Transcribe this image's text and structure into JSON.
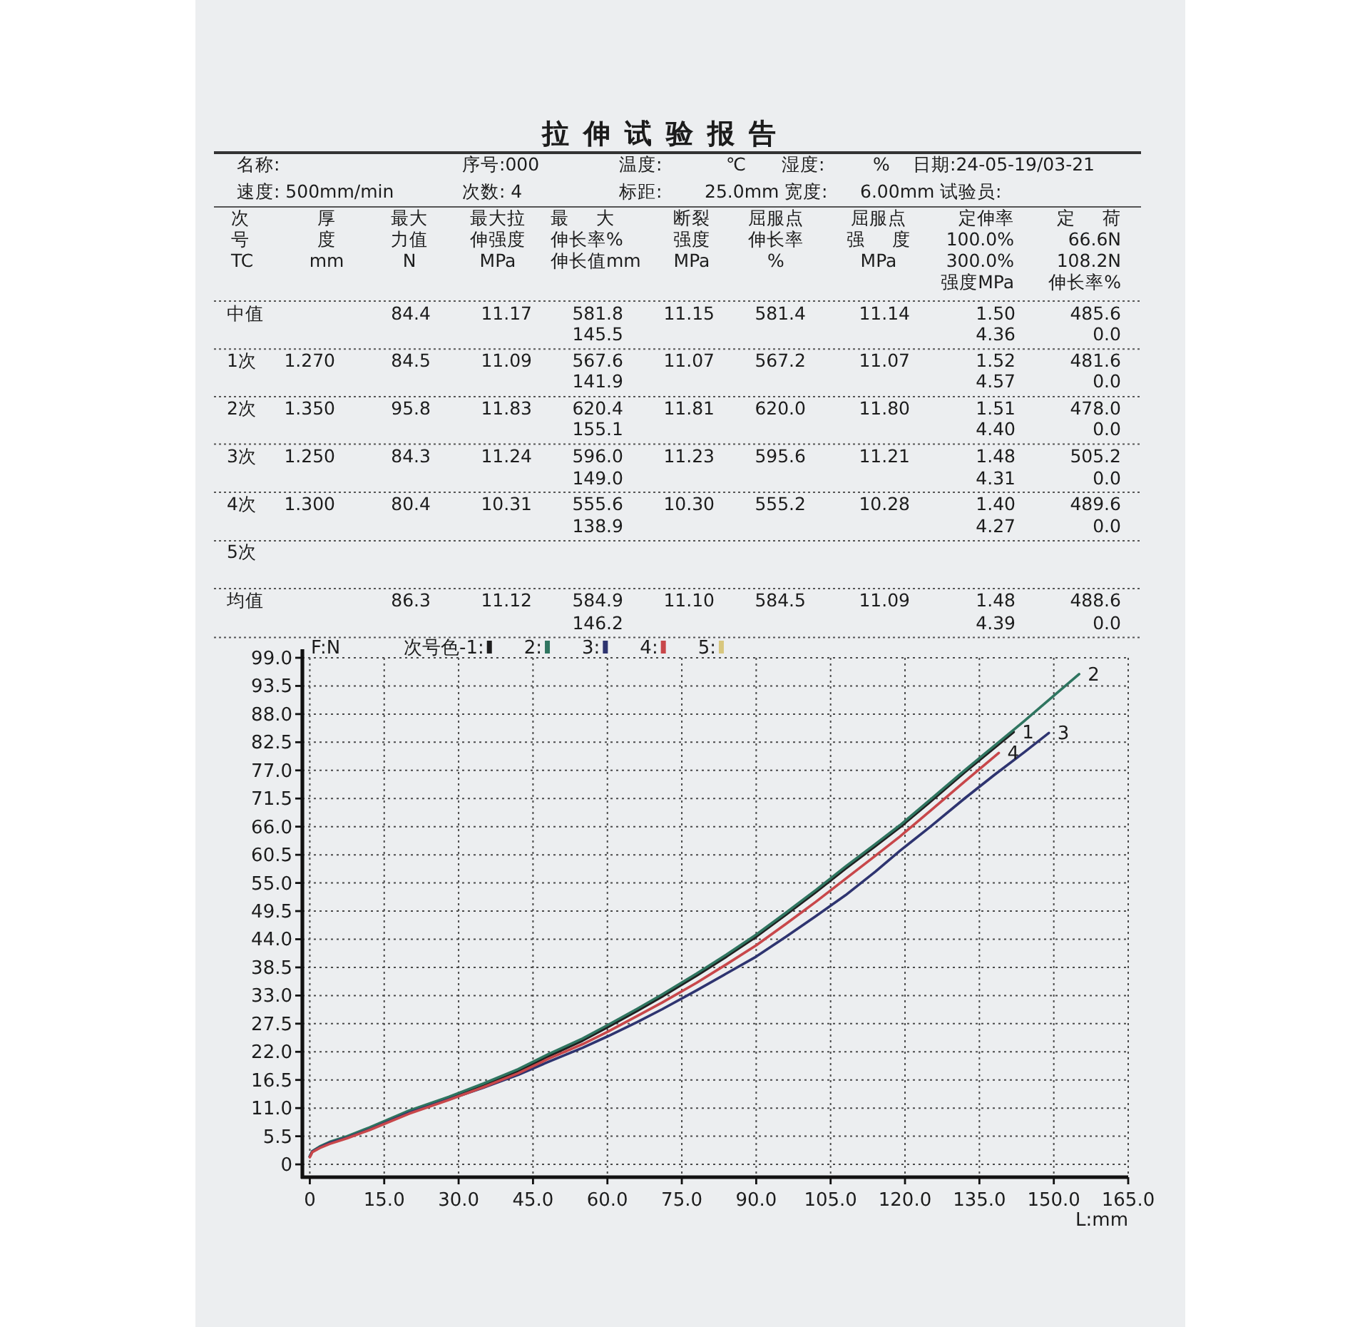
{
  "chart_data": [
    {
      "type": "other",
      "title": "拉伸试验报告",
      "annotations": [
        "名称:",
        "序号:000",
        "温度:",
        "℃",
        "湿度:",
        "%",
        "日期:24-05-19/03-21",
        "速度: 500mm/min",
        "次数: 4",
        "标距:",
        "25.0mm",
        "宽度:",
        "6.00mm",
        "试验员:",
        "次",
        "厚",
        "最大",
        "最大拉",
        "最 大",
        "断裂",
        "屈服点",
        "屈服点",
        "定伸率",
        "定 荷",
        "号",
        "度",
        "力值",
        "伸强度",
        "伸长率%",
        "强度",
        "伸长率",
        "强 度",
        "100.0%",
        "66.6N",
        "TC",
        "mm",
        "N",
        "MPa",
        "伸长值mm",
        "MPa",
        "%",
        "MPa",
        "300.0%",
        "108.2N",
        "强度MPa",
        "伸长率%",
        "中值",
        "84.4",
        "11.17",
        "581.8",
        "11.15",
        "581.4",
        "11.14",
        "1.50",
        "485.6",
        "145.5",
        "4.36",
        "0.0",
        "1次",
        "1.270",
        "84.5",
        "11.09",
        "567.6",
        "11.07",
        "567.2",
        "11.07",
        "1.52",
        "481.6",
        "141.9",
        "4.57",
        "0.0",
        "2次",
        "1.350",
        "95.8",
        "11.83",
        "620.4",
        "11.81",
        "620.0",
        "11.80",
        "1.51",
        "478.0",
        "155.1",
        "4.40",
        "0.0",
        "3次",
        "1.250",
        "84.3",
        "11.24",
        "596.0",
        "11.23",
        "595.6",
        "11.21",
        "1.48",
        "505.2",
        "149.0",
        "4.31",
        "0.0",
        "4次",
        "1.300",
        "80.4",
        "10.31",
        "555.6",
        "10.30",
        "555.2",
        "10.28",
        "1.40",
        "489.6",
        "138.9",
        "4.27",
        "0.0",
        "5次",
        "均值",
        "86.3",
        "11.12",
        "584.9",
        "11.10",
        "584.5",
        "11.09",
        "1.48",
        "488.6",
        "146.2",
        "4.39",
        "0.0"
      ]
    },
    {
      "type": "line",
      "xlabel": "L:mm",
      "ylabel": "F:N",
      "legend_title": "次号色-",
      "xlim": [
        -1.5,
        165
      ],
      "ylim": [
        -2.5,
        99
      ],
      "xticks": [
        0,
        {
          "value": 15,
          "label": "15.0"
        },
        {
          "value": 30,
          "label": "30.0"
        },
        {
          "value": 45,
          "label": "45.0"
        },
        {
          "value": 60,
          "label": "60.0"
        },
        {
          "value": 75,
          "label": "75.0"
        },
        {
          "value": 90,
          "label": "90.0"
        },
        {
          "value": 105,
          "label": "105.0"
        },
        {
          "value": 120,
          "label": "120.0"
        },
        {
          "value": 135,
          "label": "135.0"
        },
        {
          "value": 150,
          "label": "150.0"
        },
        {
          "value": 165,
          "label": "165.0"
        }
      ],
      "yticks": [
        0,
        5.5,
        {
          "value": 11,
          "label": "11.0"
        },
        16.5,
        {
          "value": 22,
          "label": "22.0"
        },
        27.5,
        {
          "value": 33,
          "label": "33.0"
        },
        38.5,
        {
          "value": 44,
          "label": "44.0"
        },
        49.5,
        {
          "value": 55,
          "label": "55.0"
        },
        60.5,
        {
          "value": 66,
          "label": "66.0"
        },
        71.5,
        {
          "value": 77,
          "label": "77.0"
        },
        82.5,
        {
          "value": 88,
          "label": "88.0"
        },
        93.5,
        {
          "value": 99,
          "label": "99.0"
        }
      ],
      "grid": true,
      "legend": "top",
      "series": [
        {
          "name": "1:",
          "color": "#1e1e1e",
          "x": [
            0,
            0.5,
            2,
            4,
            7.5,
            12,
            20,
            28,
            35,
            42,
            48,
            55,
            60,
            66,
            71,
            78,
            84,
            90,
            96,
            102,
            108,
            114,
            119,
            125,
            132,
            138,
            141.9
          ],
          "values": [
            1.5,
            2.5,
            3.3,
            4.2,
            5.3,
            7.0,
            10.2,
            12.9,
            15.4,
            18.2,
            21.1,
            24.2,
            26.8,
            30.0,
            32.8,
            36.9,
            40.6,
            44.5,
            48.8,
            53.2,
            57.8,
            62.2,
            65.9,
            70.8,
            76.6,
            81.4,
            84.5
          ]
        },
        {
          "name": "2:",
          "color": "#2f7560",
          "x": [
            0,
            0.5,
            2,
            4,
            7.5,
            12,
            20,
            28,
            35,
            42,
            48,
            55,
            60,
            66,
            71,
            78,
            84,
            90,
            96,
            102,
            108,
            114,
            119,
            125,
            132,
            138,
            144,
            150,
            155.1
          ],
          "values": [
            1.6,
            2.6,
            3.5,
            4.4,
            5.5,
            7.2,
            10.5,
            13.2,
            15.8,
            18.6,
            21.5,
            24.6,
            27.2,
            30.4,
            33.2,
            37.3,
            41.0,
            44.9,
            49.2,
            53.6,
            58.2,
            62.6,
            66.3,
            71.2,
            77.0,
            81.8,
            86.6,
            91.6,
            95.8
          ]
        },
        {
          "name": "3:",
          "color": "#2e3470",
          "x": [
            0,
            0.5,
            2,
            4,
            7.5,
            12,
            20,
            28,
            35,
            42,
            48,
            55,
            60,
            66,
            71,
            78,
            84,
            90,
            96,
            102,
            108,
            114,
            119,
            125,
            132,
            138,
            144,
            149.0
          ],
          "values": [
            1.5,
            2.5,
            3.3,
            4.2,
            5.2,
            6.8,
            10.1,
            12.7,
            15.0,
            17.5,
            20.0,
            22.8,
            25.0,
            27.8,
            30.3,
            34.0,
            37.3,
            40.6,
            44.5,
            48.5,
            52.6,
            57.2,
            61.3,
            65.9,
            71.5,
            76.1,
            80.5,
            84.3
          ]
        },
        {
          "name": "4:",
          "color": "#c8474a",
          "x": [
            0,
            0.5,
            2,
            4,
            7.5,
            12,
            20,
            28,
            35,
            42,
            48,
            55,
            60,
            66,
            71,
            78,
            84,
            90,
            96,
            102,
            108,
            114,
            119,
            125,
            132,
            138.9
          ],
          "values": [
            1.4,
            2.4,
            3.2,
            4.0,
            5.1,
            6.7,
            9.9,
            12.6,
            15.1,
            17.8,
            20.6,
            23.5,
            25.9,
            29.0,
            31.6,
            35.5,
            39.1,
            42.8,
            47.0,
            51.3,
            55.8,
            60.3,
            64.1,
            69.0,
            74.8,
            80.4
          ]
        },
        {
          "name": "5:",
          "color": "#d8c77e"
        }
      ],
      "annotations": [
        {
          "text": "1",
          "x": 141.9,
          "y": 84.5
        },
        {
          "text": "2",
          "x": 155.1,
          "y": 95.8
        },
        {
          "text": "3",
          "x": 149.0,
          "y": 84.3
        },
        {
          "text": "4",
          "x": 138.9,
          "y": 80.4
        }
      ]
    }
  ]
}
